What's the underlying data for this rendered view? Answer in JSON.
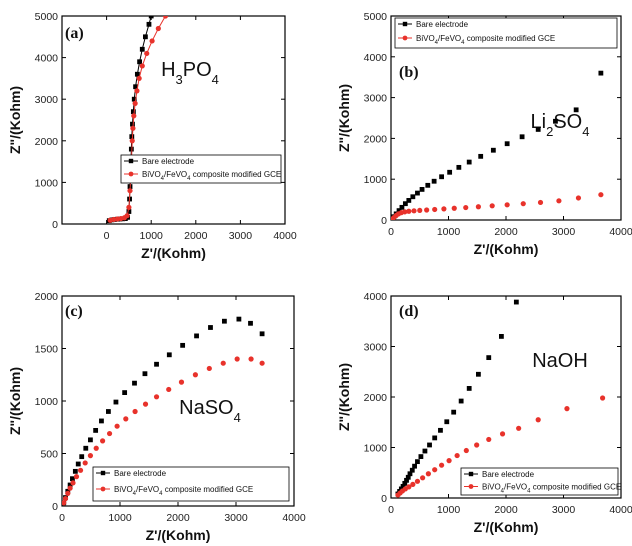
{
  "figure": {
    "background": "#ffffff",
    "colors": {
      "bare": "#000000",
      "composite": "#e8322b"
    }
  },
  "chart_data": [
    {
      "type": "scatter",
      "panel_label": "(a)",
      "annotation": {
        "main": "H",
        "parts": [
          [
            "H",
            ""
          ],
          [
            "3",
            "sub"
          ],
          [
            "PO",
            ""
          ],
          [
            "4",
            "sub"
          ]
        ],
        "text": "H3PO4"
      },
      "xlabel": "Z'/(Kohm)",
      "ylabel": "Z\"/(Kohm)",
      "xlim": [
        -1000,
        4000
      ],
      "ylim": [
        0,
        5000
      ],
      "xticks": [
        0,
        1000,
        2000,
        3000,
        4000
      ],
      "yticks": [
        0,
        1000,
        2000,
        3000,
        4000,
        5000
      ],
      "connected": true,
      "legend": {
        "position": "center-right",
        "items": [
          "Bare electrode",
          "BiVO4/FeVO4 composite modified GCE"
        ],
        "items_parts": [
          [
            [
              "Bare electrode",
              ""
            ]
          ],
          [
            [
              "BiVO",
              ""
            ],
            [
              "4",
              "sub"
            ],
            [
              "/FeVO",
              ""
            ],
            [
              "4",
              "sub"
            ],
            [
              " composite modified GCE",
              ""
            ]
          ]
        ]
      },
      "series": [
        {
          "name": "Bare electrode",
          "color": "#000000",
          "marker": "square",
          "x": [
            60,
            120,
            180,
            240,
            300,
            360,
            420,
            470,
            500,
            515,
            525,
            535,
            545,
            555,
            565,
            580,
            600,
            620,
            650,
            690,
            740,
            800,
            870,
            950,
            1000
          ],
          "y": [
            80,
            100,
            110,
            115,
            120,
            125,
            130,
            160,
            300,
            600,
            900,
            1200,
            1500,
            1800,
            2100,
            2400,
            2700,
            3000,
            3300,
            3600,
            3900,
            4200,
            4500,
            4800,
            5000
          ]
        },
        {
          "name": "BiVO4/FeVO4 composite modified GCE",
          "color": "#e8322b",
          "marker": "circle",
          "x": [
            80,
            160,
            240,
            320,
            400,
            460,
            500,
            525,
            545,
            560,
            575,
            590,
            610,
            640,
            680,
            730,
            800,
            900,
            1020,
            1160,
            1320
          ],
          "y": [
            90,
            110,
            120,
            130,
            150,
            200,
            400,
            800,
            1200,
            1600,
            2000,
            2300,
            2600,
            2900,
            3200,
            3500,
            3800,
            4100,
            4400,
            4700,
            5000
          ]
        }
      ]
    },
    {
      "type": "scatter",
      "panel_label": "(b)",
      "annotation": {
        "parts": [
          [
            "Li",
            ""
          ],
          [
            "2",
            "sub"
          ],
          [
            "SO",
            ""
          ],
          [
            "4",
            "sub"
          ]
        ],
        "text": "Li2SO4"
      },
      "xlabel": "Z'/(Kohm)",
      "ylabel": "Z\"/(Kohm)",
      "xlim": [
        0,
        4000
      ],
      "ylim": [
        0,
        5000
      ],
      "xticks": [
        0,
        1000,
        2000,
        3000,
        4000
      ],
      "yticks": [
        0,
        1000,
        2000,
        3000,
        4000,
        5000
      ],
      "connected": false,
      "legend": {
        "position": "top-left",
        "items": [
          "Bare electrode",
          "BiVO4/FeVO4 composite modified GCE"
        ],
        "items_parts": [
          [
            [
              "Bare electrode",
              ""
            ]
          ],
          [
            [
              "BiVO",
              ""
            ],
            [
              "4",
              "sub"
            ],
            [
              "/FeVO",
              ""
            ],
            [
              "4",
              "sub"
            ],
            [
              " composite modified GCE",
              ""
            ]
          ]
        ]
      },
      "series": [
        {
          "name": "Bare electrode",
          "color": "#000000",
          "marker": "square",
          "x": [
            20,
            50,
            90,
            140,
            190,
            250,
            310,
            380,
            460,
            540,
            640,
            750,
            880,
            1020,
            1180,
            1360,
            1560,
            1780,
            2020,
            2280,
            2560,
            2860,
            3220,
            3650
          ],
          "y": [
            20,
            80,
            150,
            230,
            310,
            400,
            480,
            570,
            660,
            750,
            850,
            950,
            1060,
            1170,
            1290,
            1420,
            1560,
            1710,
            1870,
            2040,
            2220,
            2420,
            2700,
            3600
          ]
        },
        {
          "name": "BiVO4/FeVO4 composite modified GCE",
          "color": "#e8322b",
          "marker": "circle",
          "x": [
            20,
            50,
            90,
            130,
            180,
            240,
            310,
            400,
            500,
            620,
            760,
            920,
            1100,
            1300,
            1520,
            1760,
            2020,
            2300,
            2600,
            2920,
            3260,
            3650
          ],
          "y": [
            20,
            60,
            110,
            150,
            180,
            200,
            215,
            225,
            235,
            245,
            258,
            272,
            288,
            305,
            325,
            348,
            372,
            400,
            430,
            470,
            540,
            620
          ]
        }
      ]
    },
    {
      "type": "scatter",
      "panel_label": "(c)",
      "annotation": {
        "parts": [
          [
            "NaSO",
            ""
          ],
          [
            "4",
            "sub"
          ]
        ],
        "text": "NaSO4"
      },
      "xlabel": "Z'/(Kohm)",
      "ylabel": "Z\"/(Kohm)",
      "xlim": [
        0,
        4000
      ],
      "ylim": [
        0,
        2000
      ],
      "xticks": [
        0,
        1000,
        2000,
        3000,
        4000
      ],
      "yticks": [
        0,
        500,
        1000,
        1500,
        2000
      ],
      "connected": false,
      "legend": {
        "position": "bottom-right",
        "items": [
          "Bare electrode",
          "BiVO4/FeVO4 composite modified GCE"
        ],
        "items_parts": [
          [
            [
              "Bare electrode",
              ""
            ]
          ],
          [
            [
              "BiVO",
              ""
            ],
            [
              "4",
              "sub"
            ],
            [
              "/FeVO",
              ""
            ],
            [
              "4",
              "sub"
            ],
            [
              " composite modified GCE",
              ""
            ]
          ]
        ]
      },
      "series": [
        {
          "name": "Bare electrode",
          "color": "#000000",
          "marker": "square",
          "x": [
            30,
            60,
            100,
            140,
            180,
            230,
            280,
            340,
            410,
            490,
            580,
            680,
            800,
            930,
            1080,
            1250,
            1430,
            1630,
            1850,
            2080,
            2320,
            2560,
            2800,
            3050,
            3250,
            3450
          ],
          "y": [
            30,
            80,
            140,
            200,
            260,
            330,
            400,
            470,
            550,
            630,
            720,
            810,
            900,
            990,
            1080,
            1170,
            1260,
            1350,
            1440,
            1530,
            1620,
            1700,
            1760,
            1780,
            1740,
            1640
          ]
        },
        {
          "name": "BiVO4/FeVO4 composite modified GCE",
          "color": "#e8322b",
          "marker": "circle",
          "x": [
            30,
            60,
            100,
            140,
            190,
            250,
            320,
            400,
            490,
            590,
            700,
            820,
            950,
            1100,
            1260,
            1440,
            1630,
            1840,
            2060,
            2300,
            2540,
            2780,
            3020,
            3260,
            3450
          ],
          "y": [
            30,
            70,
            120,
            170,
            220,
            280,
            340,
            410,
            480,
            550,
            620,
            690,
            760,
            830,
            900,
            970,
            1040,
            1110,
            1180,
            1250,
            1310,
            1360,
            1400,
            1400,
            1360
          ]
        }
      ]
    },
    {
      "type": "scatter",
      "panel_label": "(d)",
      "annotation": {
        "parts": [
          [
            "NaOH",
            ""
          ]
        ],
        "text": "NaOH"
      },
      "xlabel": "Z'/(Kohm)",
      "ylabel": "Z\"/(Kohm)",
      "xlim": [
        0,
        4000
      ],
      "ylim": [
        0,
        4000
      ],
      "xticks": [
        0,
        1000,
        2000,
        3000,
        4000
      ],
      "yticks": [
        0,
        1000,
        2000,
        3000,
        4000
      ],
      "connected": false,
      "legend": {
        "position": "bottom-right",
        "items": [
          "Bare electrode",
          "BiVO4/FeVO4 composite modified GCE"
        ],
        "items_parts": [
          [
            [
              "Bare electrode",
              ""
            ]
          ],
          [
            [
              "BiVO",
              ""
            ],
            [
              "4",
              "sub"
            ],
            [
              "/FeVO",
              ""
            ],
            [
              "4",
              "sub"
            ],
            [
              " composite modified GCE",
              ""
            ]
          ]
        ]
      },
      "series": [
        {
          "name": "Bare electrode",
          "color": "#000000",
          "marker": "square",
          "x": [
            120,
            150,
            180,
            210,
            240,
            270,
            300,
            330,
            370,
            410,
            460,
            520,
            590,
            670,
            760,
            860,
            970,
            1090,
            1220,
            1360,
            1520,
            1700,
            1920,
            2180
          ],
          "y": [
            80,
            130,
            180,
            230,
            290,
            350,
            410,
            480,
            550,
            630,
            720,
            820,
            930,
            1050,
            1190,
            1340,
            1510,
            1700,
            1920,
            2170,
            2450,
            2780,
            3200,
            3880
          ]
        },
        {
          "name": "BiVO4/FeVO4 composite modified GCE",
          "color": "#e8322b",
          "marker": "circle",
          "x": [
            120,
            160,
            200,
            250,
            310,
            380,
            460,
            550,
            650,
            760,
            880,
            1010,
            1150,
            1310,
            1490,
            1700,
            1940,
            2220,
            2560,
            3060,
            3680
          ],
          "y": [
            60,
            100,
            140,
            180,
            220,
            270,
            330,
            400,
            480,
            560,
            650,
            740,
            840,
            940,
            1050,
            1160,
            1270,
            1380,
            1550,
            1770,
            1980
          ]
        }
      ]
    }
  ]
}
